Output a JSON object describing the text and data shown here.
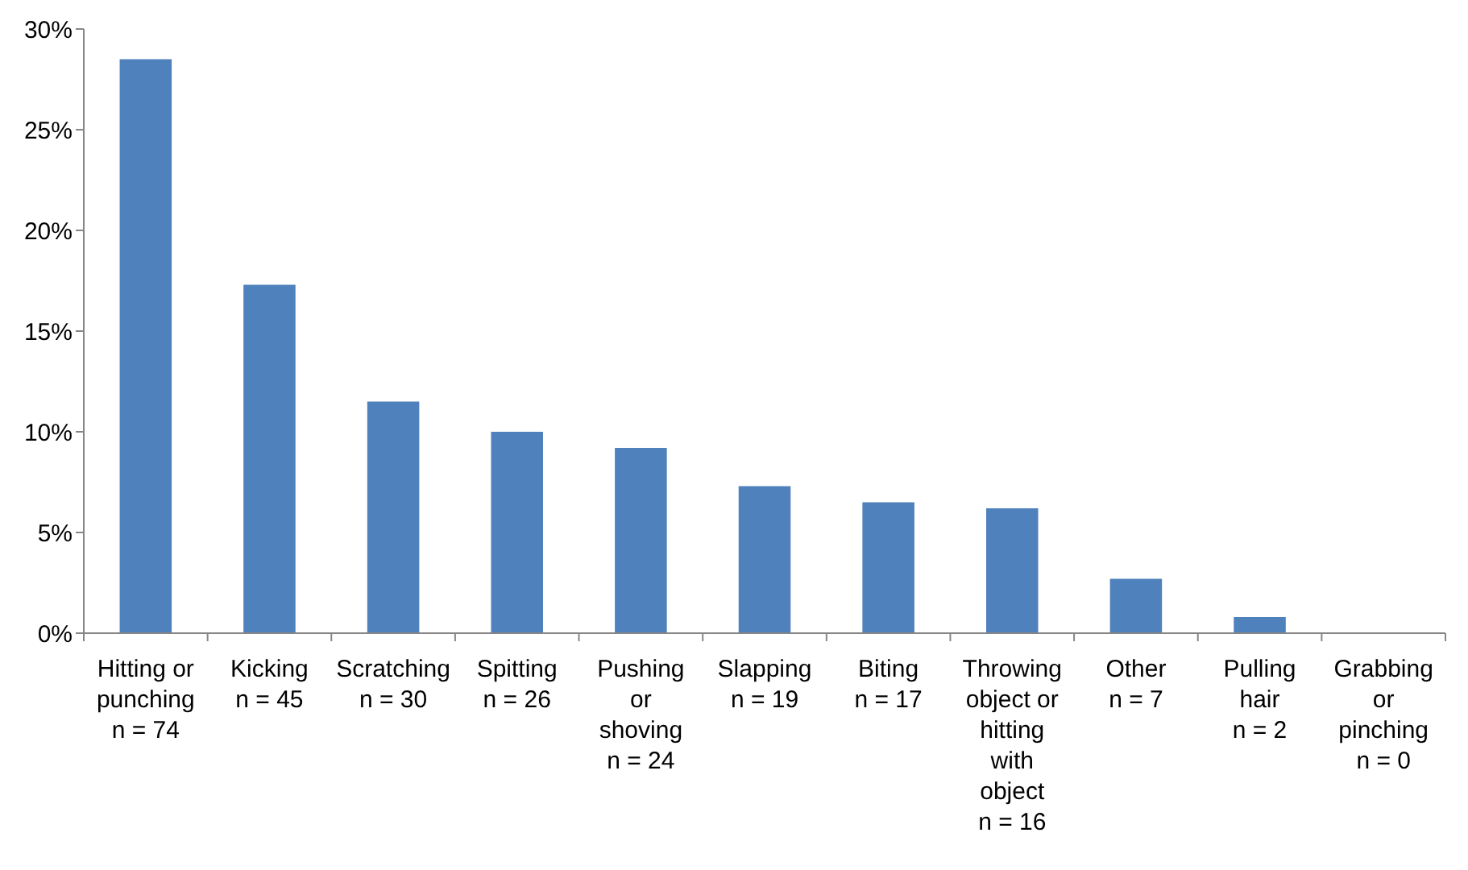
{
  "chart_data": {
    "type": "bar",
    "categories": [
      "Hitting or\npunching\nn = 74",
      "Kicking\nn = 45",
      "Scratching\nn = 30",
      "Spitting\nn = 26",
      "Pushing\nor\nshoving\nn = 24",
      "Slapping\nn = 19",
      "Biting\nn = 17",
      "Throwing\nobject or\nhitting\nwith\nobject\nn = 16",
      "Other\nn = 7",
      "Pulling\nhair\nn = 2",
      "Grabbing\nor\npinching\nn = 0"
    ],
    "values": [
      28.5,
      17.3,
      11.5,
      10.0,
      9.2,
      7.3,
      6.5,
      6.2,
      2.7,
      0.8,
      0
    ],
    "color": "#4f81bd",
    "ylim": [
      0,
      30
    ],
    "yticks": [
      {
        "value": 0,
        "label": "0%"
      },
      {
        "value": 5,
        "label": "5%"
      },
      {
        "value": 10,
        "label": "10%"
      },
      {
        "value": 15,
        "label": "15%"
      },
      {
        "value": 20,
        "label": "20%"
      },
      {
        "value": 25,
        "label": "25%"
      },
      {
        "value": 30,
        "label": "30%"
      }
    ],
    "grid": false
  }
}
